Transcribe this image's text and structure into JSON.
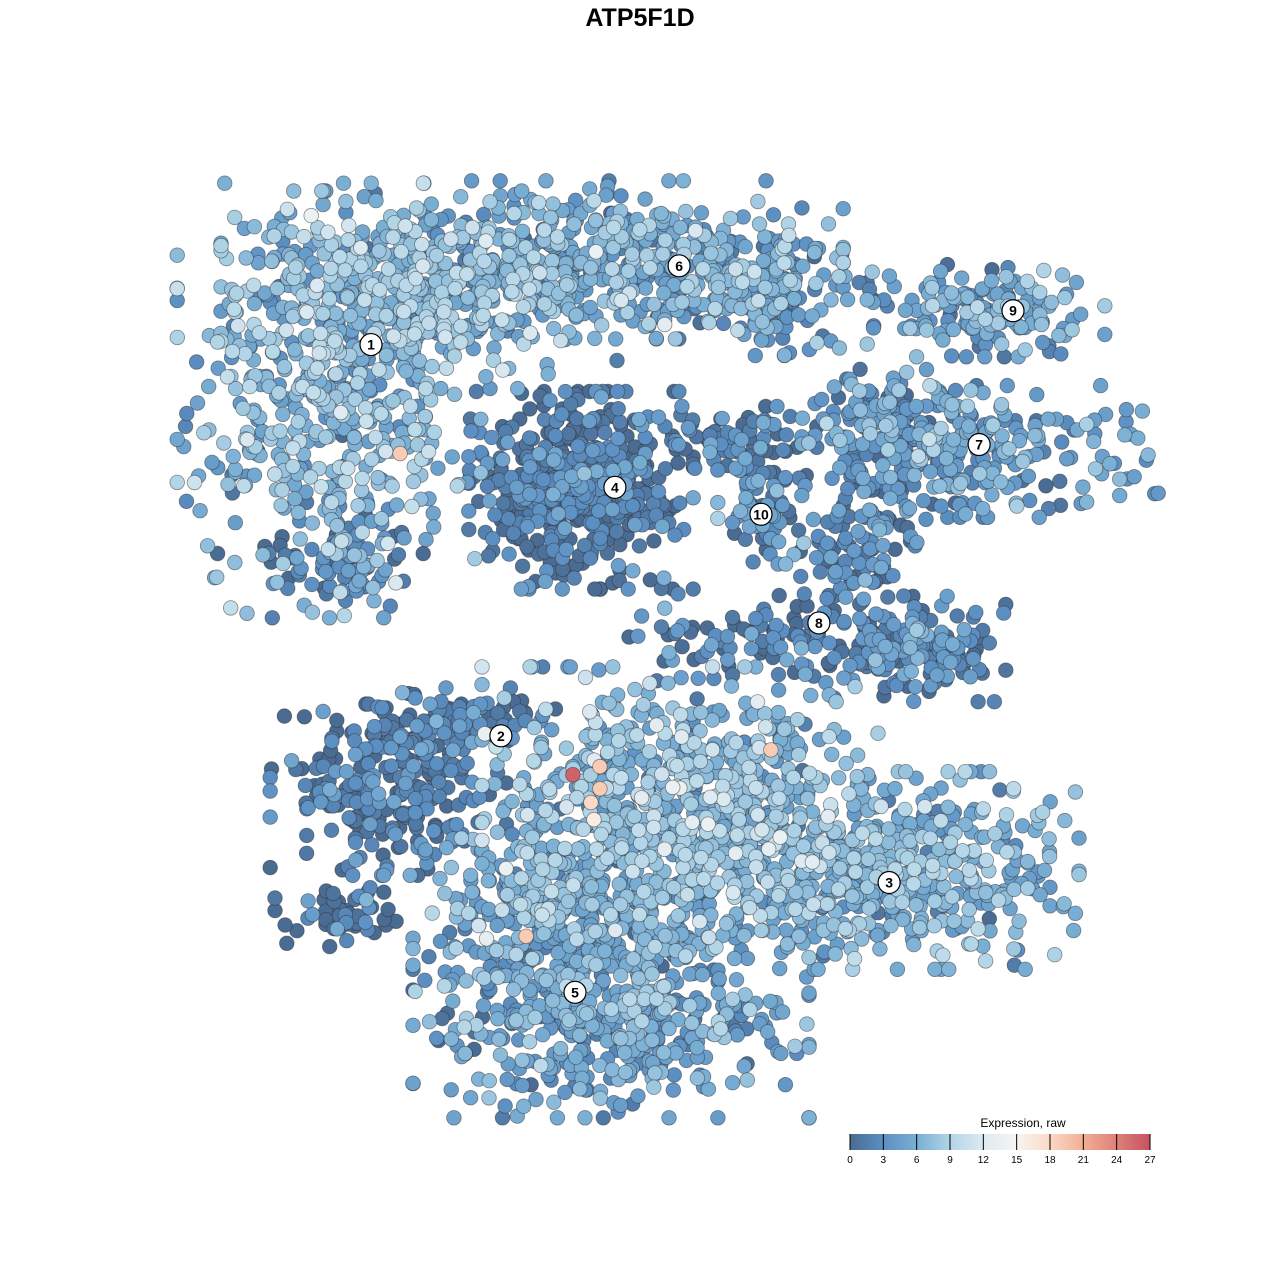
{
  "chart_data": {
    "type": "scatter",
    "title": "ATP5F1D",
    "xlabel": "",
    "ylabel": "",
    "xlim": [
      -15.5,
      15.5
    ],
    "ylim": [
      -15.2,
      15.2
    ],
    "grid": false,
    "axes_visible": false,
    "color_scale": {
      "title": "Expression, raw",
      "min": 0,
      "max": 27,
      "ticks": [
        0,
        3,
        6,
        9,
        12,
        15,
        18,
        21,
        24,
        27
      ],
      "colors": [
        "#4a6b92",
        "#5b8fc3",
        "#79aed4",
        "#b2d5e7",
        "#deeaf2",
        "#f7f5f3",
        "#fbd9c6",
        "#f2ae94",
        "#de8078",
        "#c65263"
      ],
      "legend_position": "bottom-right"
    },
    "cluster_regions": [
      {
        "cluster": "1",
        "cx": -11.2,
        "cy": 8.0,
        "sx": 2.3,
        "sy": 3.3,
        "n": 500,
        "mean_expr": 6.5
      },
      {
        "cluster": "1",
        "cx": -8.2,
        "cy": 11.7,
        "sx": 3.0,
        "sy": 1.5,
        "n": 400,
        "mean_expr": 6.5
      },
      {
        "cluster": "1",
        "cx": -10.7,
        "cy": 2.7,
        "sx": 1.2,
        "sy": 0.7,
        "n": 80,
        "mean_expr": 2
      },
      {
        "cluster": "6",
        "cx": -2.2,
        "cy": 12.7,
        "sx": 3.7,
        "sy": 1.2,
        "n": 450,
        "mean_expr": 5.5
      },
      {
        "cluster": "6",
        "cx": 3.2,
        "cy": 11.7,
        "sx": 1.7,
        "sy": 1.0,
        "n": 150,
        "mean_expr": 4.5
      },
      {
        "cluster": "4",
        "cx": -2.8,
        "cy": 5.0,
        "sx": 1.7,
        "sy": 1.5,
        "n": 500,
        "mean_expr": 1
      },
      {
        "cluster": "4",
        "cx": 2.2,
        "cy": 6.7,
        "sx": 1.3,
        "sy": 0.5,
        "n": 80,
        "mean_expr": 1.5
      },
      {
        "cluster": "10",
        "cx": 3.3,
        "cy": 4.3,
        "sx": 0.7,
        "sy": 0.8,
        "n": 60,
        "mean_expr": 3
      },
      {
        "cluster": "9",
        "cx": 10.7,
        "cy": 11.0,
        "sx": 1.8,
        "sy": 0.7,
        "n": 150,
        "mean_expr": 5
      },
      {
        "cluster": "7",
        "cx": 10.5,
        "cy": 6.3,
        "sx": 2.7,
        "sy": 1.0,
        "n": 250,
        "mean_expr": 4
      },
      {
        "cluster": "7",
        "cx": 7.2,
        "cy": 7.7,
        "sx": 1.0,
        "sy": 0.8,
        "n": 80,
        "mean_expr": 3.5
      },
      {
        "cluster": "8",
        "cx": 6.5,
        "cy": 3.3,
        "sx": 1.0,
        "sy": 1.5,
        "n": 120,
        "mean_expr": 2.5
      },
      {
        "cluster": "8",
        "cx": 8.5,
        "cy": -0.3,
        "sx": 1.3,
        "sy": 0.8,
        "n": 150,
        "mean_expr": 2.5
      },
      {
        "cluster": "8",
        "cx": 3.2,
        "cy": 0.0,
        "sx": 2.0,
        "sy": 0.7,
        "n": 100,
        "mean_expr": 2
      },
      {
        "cluster": "2",
        "cx": -9.2,
        "cy": -5.0,
        "sx": 1.8,
        "sy": 1.3,
        "n": 250,
        "mean_expr": 1.5
      },
      {
        "cluster": "2",
        "cx": -7.2,
        "cy": -2.7,
        "sx": 1.7,
        "sy": 0.5,
        "n": 80,
        "mean_expr": 1.5
      },
      {
        "cluster": "2",
        "cx": -10.8,
        "cy": -9.3,
        "sx": 1.0,
        "sy": 0.5,
        "n": 50,
        "mean_expr": 0.5
      },
      {
        "cluster": "3",
        "cx": 7.2,
        "cy": -7.7,
        "sx": 3.0,
        "sy": 1.5,
        "n": 500,
        "mean_expr": 6
      },
      {
        "cluster": "3",
        "cx": 0.5,
        "cy": -5.3,
        "sx": 3.0,
        "sy": 2.0,
        "n": 700,
        "mean_expr": 6.5
      },
      {
        "cluster": "5",
        "cx": -1.8,
        "cy": -12.0,
        "sx": 3.0,
        "sy": 1.8,
        "n": 600,
        "mean_expr": 5
      },
      {
        "cluster": "5",
        "cx": -4.2,
        "cy": -8.7,
        "sx": 1.7,
        "sy": 1.3,
        "n": 200,
        "mean_expr": 6
      }
    ],
    "high_expression_points": [
      {
        "x": -3.07,
        "y": -4.5,
        "value": 26
      },
      {
        "x": -2.17,
        "y": -4.23,
        "value": 19
      },
      {
        "x": -2.17,
        "y": -4.97,
        "value": 19
      },
      {
        "x": -2.47,
        "y": -5.43,
        "value": 18
      },
      {
        "x": -2.37,
        "y": -6.0,
        "value": 16
      },
      {
        "x": -8.83,
        "y": 6.23,
        "value": 19
      },
      {
        "x": -4.63,
        "y": -9.9,
        "value": 19
      },
      {
        "x": 3.53,
        "y": -3.67,
        "value": 19
      }
    ],
    "cluster_labels": [
      {
        "label": "1",
        "x": -9.8,
        "y": 9.87
      },
      {
        "label": "6",
        "x": 0.47,
        "y": 12.5
      },
      {
        "label": "9",
        "x": 11.6,
        "y": 11.0
      },
      {
        "label": "7",
        "x": 10.47,
        "y": 6.53
      },
      {
        "label": "4",
        "x": -1.67,
        "y": 5.1
      },
      {
        "label": "10",
        "x": 3.2,
        "y": 4.2
      },
      {
        "label": "8",
        "x": 5.13,
        "y": 0.57
      },
      {
        "label": "2",
        "x": -5.47,
        "y": -3.2
      },
      {
        "label": "3",
        "x": 7.47,
        "y": -8.1
      },
      {
        "label": "5",
        "x": -3.0,
        "y": -11.77
      }
    ]
  }
}
